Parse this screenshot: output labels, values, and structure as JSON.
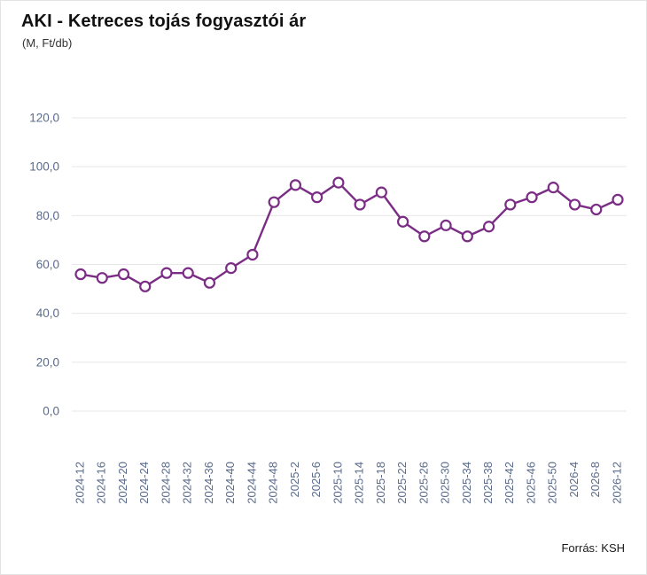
{
  "header": {
    "title": "AKI - Ketreces tojás fogyasztói ár",
    "subtitle": "(M, Ft/db)"
  },
  "footer": {
    "source": "Forrás: KSH"
  },
  "chart_data": {
    "type": "line",
    "title": "AKI - Ketreces tojás fogyasztói ár",
    "subtitle": "(M, Ft/db)",
    "x": [
      "2024-12",
      "2024-16",
      "2024-20",
      "2024-24",
      "2024-28",
      "2024-32",
      "2024-36",
      "2024-40",
      "2024-44",
      "2024-48",
      "2025-2",
      "2025-6",
      "2025-10",
      "2025-14",
      "2025-18",
      "2025-22",
      "2025-26",
      "2025-30",
      "2025-34",
      "2025-38",
      "2025-42",
      "2025-46",
      "2025-50",
      "2026-4",
      "2026-8",
      "2026-12"
    ],
    "series": [
      {
        "name": "Ketreces tojás fogyasztói ár (Ft/db)",
        "values": [
          56.0,
          54.5,
          56.0,
          51.0,
          56.5,
          56.5,
          52.5,
          58.5,
          64.0,
          85.5,
          92.5,
          87.5,
          93.5,
          84.5,
          89.5,
          77.5,
          71.5,
          76.0,
          71.5,
          75.5,
          84.5,
          87.5,
          91.5,
          84.5,
          82.5,
          86.5
        ]
      }
    ],
    "ylim": [
      0,
      120
    ],
    "yticks": [
      0,
      20,
      40,
      60,
      80,
      100,
      120
    ],
    "ytick_labels": [
      "0,0",
      "20,0",
      "40,0",
      "60,0",
      "80,0",
      "100,0",
      "120,0"
    ],
    "xlabel": "",
    "ylabel": "",
    "grid": true,
    "legend_position": "none",
    "marker": "open-circle",
    "colors": {
      "line": "#7b2d85",
      "marker_fill": "#ffffff",
      "grid": "#e7e7e7",
      "tick_label": "#5a6b8c"
    }
  }
}
